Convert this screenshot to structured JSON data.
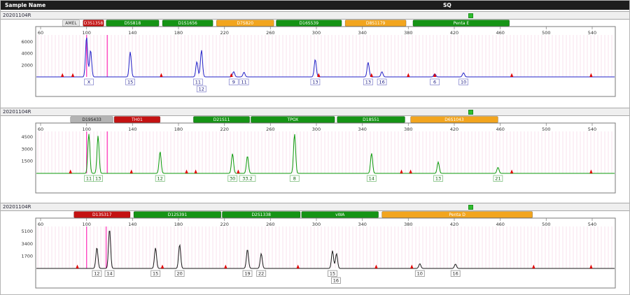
{
  "header": {
    "sample_col_label": "Sample Name",
    "sq_col_label": "SQ"
  },
  "colors": {
    "header_bg": "#1d1d1d",
    "header_text": "#ffffff",
    "sample_row_bg": "#efefef",
    "plot_border": "#7a7a7a",
    "bin_stripe": "rgba(236,160,200,0.33)",
    "cursor": "#ff3dbd",
    "ils": "#e10000",
    "sq_green": "#2fbf2f",
    "ruler_text": "#333333"
  },
  "x_ticks": [
    60,
    100,
    140,
    180,
    220,
    260,
    300,
    340,
    380,
    420,
    460,
    500,
    540
  ],
  "panels": [
    {
      "sample_name": "20201104R",
      "trace_color": "#2323c8",
      "allele_text_color": "#14147e",
      "allele_box_border": "#8c8cd0",
      "y_ticks": [
        6000,
        4000,
        2000
      ],
      "y_max": 7200,
      "markers": [
        {
          "label": "AMEL",
          "fill": "#e6e6e6",
          "text_color": "#333333",
          "bp_start": 79,
          "bp_end": 94
        },
        {
          "label": "D3S1358",
          "fill": "#c41212",
          "text_color": "#ffffff",
          "bp_start": 97,
          "bp_end": 115
        },
        {
          "label": "D5S818",
          "fill": "#159415",
          "text_color": "#ffffff",
          "bp_start": 117,
          "bp_end": 163
        },
        {
          "label": "D1S1656",
          "fill": "#159415",
          "text_color": "#ffffff",
          "bp_start": 166,
          "bp_end": 210
        },
        {
          "label": "D7S820",
          "fill": "#f2a51e",
          "text_color": "#ffffff",
          "bp_start": 213,
          "bp_end": 263
        },
        {
          "label": "D16S539",
          "fill": "#159415",
          "text_color": "#ffffff",
          "bp_start": 265,
          "bp_end": 322
        },
        {
          "label": "D8S1179",
          "fill": "#f2a51e",
          "text_color": "#ffffff",
          "bp_start": 325,
          "bp_end": 378
        },
        {
          "label": "Penta E",
          "fill": "#159415",
          "text_color": "#ffffff",
          "bp_start": 384,
          "bp_end": 468
        }
      ],
      "peaks": [
        {
          "bp": 100,
          "rfu": 6900
        },
        {
          "bp": 103.5,
          "rfu": 4600
        },
        {
          "bp": 138,
          "rfu": 4300
        },
        {
          "bp": 196,
          "rfu": 2600
        },
        {
          "bp": 200,
          "rfu": 4600
        },
        {
          "bp": 228,
          "rfu": 900
        },
        {
          "bp": 237,
          "rfu": 800
        },
        {
          "bp": 299,
          "rfu": 3000
        },
        {
          "bp": 345,
          "rfu": 2500
        },
        {
          "bp": 357,
          "rfu": 900
        },
        {
          "bp": 403,
          "rfu": 520
        },
        {
          "bp": 428,
          "rfu": 700
        }
      ],
      "alleles": [
        {
          "label": "X",
          "bp": 102,
          "row": 0
        },
        {
          "label": "15",
          "bp": 138,
          "row": 0
        },
        {
          "label": "11",
          "bp": 197,
          "row": 0
        },
        {
          "label": "12",
          "bp": 200,
          "row": 1
        },
        {
          "label": "9",
          "bp": 228,
          "row": 0
        },
        {
          "label": "11",
          "bp": 237,
          "row": 0
        },
        {
          "label": "13",
          "bp": 299,
          "row": 0
        },
        {
          "label": "13",
          "bp": 345,
          "row": 0
        },
        {
          "label": "16",
          "bp": 357,
          "row": 0
        },
        {
          "label": "6",
          "bp": 403,
          "row": 0
        },
        {
          "label": "10",
          "bp": 428,
          "row": 0
        }
      ],
      "ils_bp": [
        79,
        88,
        165,
        226,
        302,
        348,
        380,
        403,
        470,
        539
      ],
      "cursor_bp": [
        100,
        118
      ]
    },
    {
      "sample_name": "20201104R",
      "trace_color": "#0b9b0b",
      "allele_text_color": "#0a5f0a",
      "allele_box_border": "#7fc07f",
      "y_ticks": [
        4500,
        3000,
        1500
      ],
      "y_max": 5200,
      "markers": [
        {
          "label": "D19S433",
          "fill": "#b3b3b3",
          "text_color": "#222222",
          "bp_start": 86,
          "bp_end": 123
        },
        {
          "label": "TH01",
          "fill": "#c41212",
          "text_color": "#ffffff",
          "bp_start": 124,
          "bp_end": 164
        },
        {
          "label": "D21S11",
          "fill": "#159415",
          "text_color": "#ffffff",
          "bp_start": 193,
          "bp_end": 242
        },
        {
          "label": "TPOX",
          "fill": "#159415",
          "text_color": "#ffffff",
          "bp_start": 243,
          "bp_end": 316
        },
        {
          "label": "D18S51",
          "fill": "#159415",
          "text_color": "#ffffff",
          "bp_start": 318,
          "bp_end": 377
        },
        {
          "label": "D6S1043",
          "fill": "#f2a51e",
          "text_color": "#ffffff",
          "bp_start": 382,
          "bp_end": 458
        }
      ],
      "peaks": [
        {
          "bp": 102,
          "rfu": 4900
        },
        {
          "bp": 110,
          "rfu": 4650
        },
        {
          "bp": 164,
          "rfu": 2700
        },
        {
          "bp": 227,
          "rfu": 2450
        },
        {
          "bp": 240,
          "rfu": 2150
        },
        {
          "bp": 281,
          "rfu": 4900
        },
        {
          "bp": 348,
          "rfu": 2500
        },
        {
          "bp": 406,
          "rfu": 1400
        },
        {
          "bp": 458,
          "rfu": 750
        }
      ],
      "alleles": [
        {
          "label": "11",
          "bp": 102,
          "row": 0
        },
        {
          "label": "13",
          "bp": 110,
          "row": 0
        },
        {
          "label": "12",
          "bp": 164,
          "row": 0
        },
        {
          "label": "30",
          "bp": 227,
          "row": 0
        },
        {
          "label": "33.2",
          "bp": 240,
          "row": 0
        },
        {
          "label": "8",
          "bp": 281,
          "row": 0
        },
        {
          "label": "14",
          "bp": 348,
          "row": 0
        },
        {
          "label": "13",
          "bp": 406,
          "row": 0
        },
        {
          "label": "21",
          "bp": 458,
          "row": 0
        }
      ],
      "ils_bp": [
        86,
        139,
        187,
        195,
        232,
        374,
        382,
        470,
        539
      ],
      "cursor_bp": [
        100,
        118
      ]
    },
    {
      "sample_name": "20201104R",
      "trace_color": "#1a1a1a",
      "allele_text_color": "#222222",
      "allele_box_border": "#8f8f8f",
      "y_ticks": [
        5100,
        3400,
        1700
      ],
      "y_max": 5800,
      "markers": [
        {
          "label": "D13S317",
          "fill": "#c41212",
          "text_color": "#ffffff",
          "bp_start": 89,
          "bp_end": 138
        },
        {
          "label": "D12S391",
          "fill": "#159415",
          "text_color": "#ffffff",
          "bp_start": 141,
          "bp_end": 217
        },
        {
          "label": "D2S1338",
          "fill": "#159415",
          "text_color": "#ffffff",
          "bp_start": 218,
          "bp_end": 286
        },
        {
          "label": "vWA",
          "fill": "#159415",
          "text_color": "#ffffff",
          "bp_start": 287,
          "bp_end": 354
        },
        {
          "label": "Penta D",
          "fill": "#f2a51e",
          "text_color": "#ffffff",
          "bp_start": 357,
          "bp_end": 488
        }
      ],
      "peaks": [
        {
          "bp": 109,
          "rfu": 2900
        },
        {
          "bp": 120,
          "rfu": 5450
        },
        {
          "bp": 160,
          "rfu": 2850
        },
        {
          "bp": 181,
          "rfu": 3300
        },
        {
          "bp": 240,
          "rfu": 2650
        },
        {
          "bp": 252,
          "rfu": 2050
        },
        {
          "bp": 314,
          "rfu": 2450
        },
        {
          "bp": 317.5,
          "rfu": 2050
        },
        {
          "bp": 390,
          "rfu": 650
        },
        {
          "bp": 421,
          "rfu": 600
        }
      ],
      "alleles": [
        {
          "label": "12",
          "bp": 109,
          "row": 0
        },
        {
          "label": "14",
          "bp": 120,
          "row": 0
        },
        {
          "label": "15",
          "bp": 160,
          "row": 0
        },
        {
          "label": "20",
          "bp": 181,
          "row": 0
        },
        {
          "label": "19",
          "bp": 240,
          "row": 0
        },
        {
          "label": "22",
          "bp": 252,
          "row": 0
        },
        {
          "label": "15",
          "bp": 314,
          "row": 0
        },
        {
          "label": "16",
          "bp": 317,
          "row": 1
        },
        {
          "label": "10",
          "bp": 390,
          "row": 0
        },
        {
          "label": "16",
          "bp": 421,
          "row": 0
        }
      ],
      "ils_bp": [
        92,
        166,
        221,
        284,
        352,
        383,
        489,
        539
      ],
      "cursor_bp": [
        100,
        117
      ]
    }
  ]
}
